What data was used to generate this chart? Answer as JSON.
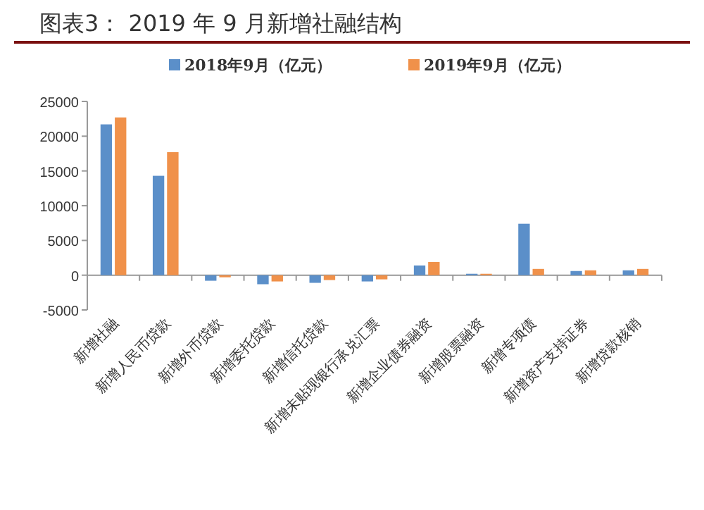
{
  "chart_data": {
    "type": "bar",
    "title": "图表3： 2019 年 9 月新增社融结构",
    "categories": [
      "新增社融",
      "新增人民币贷款",
      "新增外币贷款",
      "新增委托贷款",
      "新增信托贷款",
      "新增未贴现银行承兑汇票",
      "新增企业债券融资",
      "新增股票融资",
      "新增专项债",
      "新增资产支持证券",
      "新增贷款核销"
    ],
    "series": [
      {
        "name": "2018年9月（亿元）",
        "color": "#5b8fc9",
        "values": [
          21700,
          14300,
          -800,
          -1300,
          -1100,
          -900,
          1400,
          200,
          7400,
          600,
          700
        ]
      },
      {
        "name": "2019年9月（亿元）",
        "color": "#f0914a",
        "values": [
          22700,
          17700,
          -300,
          -900,
          -700,
          -600,
          1900,
          200,
          900,
          700,
          900
        ]
      }
    ],
    "ylim": [
      -5000,
      25000
    ],
    "yticks": [
      -5000,
      0,
      5000,
      10000,
      15000,
      20000,
      25000
    ],
    "legend": "top"
  }
}
